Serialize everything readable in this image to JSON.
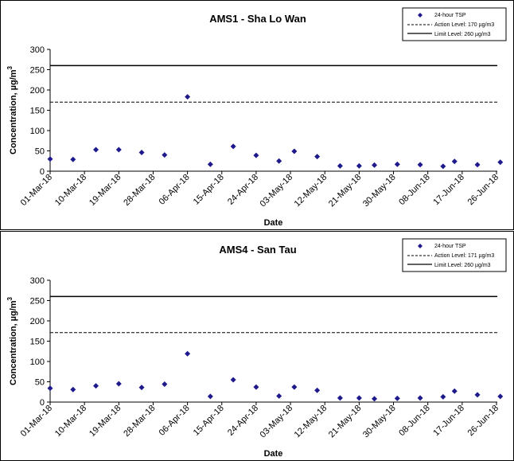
{
  "chart_data": [
    {
      "type": "scatter",
      "title": "AMS1 - Sha Lo Wan",
      "xlabel": "Date",
      "ylabel_main": "Concentration, µg/m",
      "ylabel_sup": "3",
      "ylim": [
        0,
        300
      ],
      "y_ticks": [
        0,
        50,
        100,
        150,
        200,
        250,
        300
      ],
      "x_tick_labels": [
        "01-Mar-18",
        "10-Mar-18",
        "19-Mar-18",
        "28-Mar-18",
        "06-Apr-18",
        "15-Apr-18",
        "24-Apr-18",
        "03-May-18",
        "12-May-18",
        "21-May-18",
        "30-May-18",
        "08-Jun-18",
        "17-Jun-18",
        "26-Jun-18"
      ],
      "x_range": [
        "2018-03-01",
        "2018-06-26"
      ],
      "series": [
        {
          "name": "24-hour TSP",
          "color": "#1f1a8c",
          "marker": "diamond",
          "points": [
            {
              "x": "2018-03-01",
              "y": 30
            },
            {
              "x": "2018-03-07",
              "y": 29
            },
            {
              "x": "2018-03-13",
              "y": 53
            },
            {
              "x": "2018-03-19",
              "y": 53
            },
            {
              "x": "2018-03-25",
              "y": 46
            },
            {
              "x": "2018-03-31",
              "y": 40
            },
            {
              "x": "2018-04-06",
              "y": 183
            },
            {
              "x": "2018-04-12",
              "y": 17
            },
            {
              "x": "2018-04-18",
              "y": 61
            },
            {
              "x": "2018-04-24",
              "y": 39
            },
            {
              "x": "2018-04-30",
              "y": 25
            },
            {
              "x": "2018-05-04",
              "y": 49
            },
            {
              "x": "2018-05-10",
              "y": 36
            },
            {
              "x": "2018-05-16",
              "y": 13
            },
            {
              "x": "2018-05-21",
              "y": 13
            },
            {
              "x": "2018-05-25",
              "y": 15
            },
            {
              "x": "2018-05-31",
              "y": 17
            },
            {
              "x": "2018-06-06",
              "y": 16
            },
            {
              "x": "2018-06-12",
              "y": 12
            },
            {
              "x": "2018-06-15",
              "y": 24
            },
            {
              "x": "2018-06-21",
              "y": 16
            },
            {
              "x": "2018-06-27",
              "y": 22
            }
          ]
        },
        {
          "name": "Action Level: 170 µg/m3",
          "style": "dashed",
          "value": 170
        },
        {
          "name": "Limit Level: 260 µg/m3",
          "style": "solid",
          "value": 260
        }
      ],
      "legend_position": "top-right"
    },
    {
      "type": "scatter",
      "title": "AMS4 - San Tau",
      "xlabel": "Date",
      "ylabel_main": "Concentration, µg/m",
      "ylabel_sup": "3",
      "ylim": [
        0,
        300
      ],
      "y_ticks": [
        0,
        50,
        100,
        150,
        200,
        250,
        300
      ],
      "x_tick_labels": [
        "01-Mar-18",
        "10-Mar-18",
        "19-Mar-18",
        "28-Mar-18",
        "06-Apr-18",
        "15-Apr-18",
        "24-Apr-18",
        "03-May-18",
        "12-May-18",
        "21-May-18",
        "30-May-18",
        "08-Jun-18",
        "17-Jun-18",
        "26-Jun-18"
      ],
      "x_range": [
        "2018-03-01",
        "2018-06-26"
      ],
      "series": [
        {
          "name": "24-hour TSP",
          "color": "#1f1a8c",
          "marker": "diamond",
          "points": [
            {
              "x": "2018-03-01",
              "y": 34
            },
            {
              "x": "2018-03-07",
              "y": 31
            },
            {
              "x": "2018-03-13",
              "y": 40
            },
            {
              "x": "2018-03-19",
              "y": 45
            },
            {
              "x": "2018-03-25",
              "y": 36
            },
            {
              "x": "2018-03-31",
              "y": 44
            },
            {
              "x": "2018-04-06",
              "y": 119
            },
            {
              "x": "2018-04-12",
              "y": 14
            },
            {
              "x": "2018-04-18",
              "y": 55
            },
            {
              "x": "2018-04-24",
              "y": 37
            },
            {
              "x": "2018-04-30",
              "y": 15
            },
            {
              "x": "2018-05-04",
              "y": 37
            },
            {
              "x": "2018-05-10",
              "y": 29
            },
            {
              "x": "2018-05-16",
              "y": 10
            },
            {
              "x": "2018-05-21",
              "y": 10
            },
            {
              "x": "2018-05-25",
              "y": 8
            },
            {
              "x": "2018-05-31",
              "y": 9
            },
            {
              "x": "2018-06-06",
              "y": 10
            },
            {
              "x": "2018-06-12",
              "y": 13
            },
            {
              "x": "2018-06-15",
              "y": 27
            },
            {
              "x": "2018-06-21",
              "y": 18
            },
            {
              "x": "2018-06-27",
              "y": 14
            }
          ]
        },
        {
          "name": "Action Level: 171 µg/m3",
          "style": "dashed",
          "value": 171
        },
        {
          "name": "Limit Level: 260 µg/m3",
          "style": "solid",
          "value": 260
        }
      ],
      "legend_position": "top-right"
    }
  ]
}
